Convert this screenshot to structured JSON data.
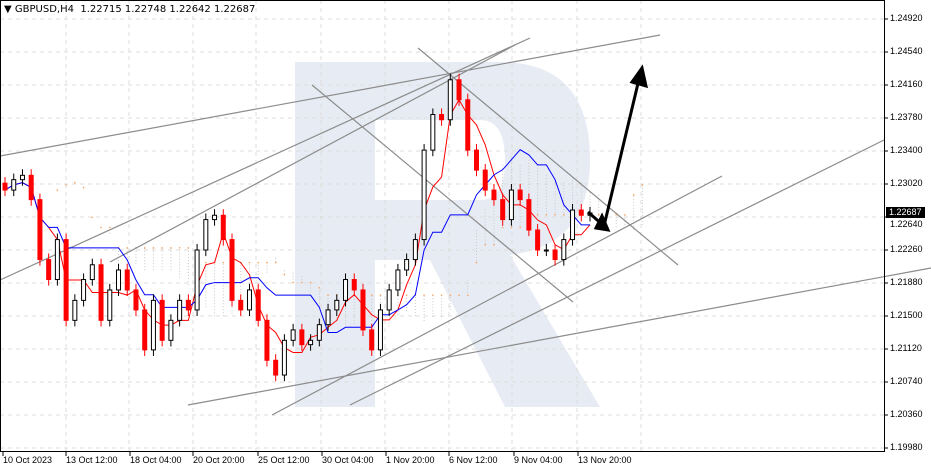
{
  "header": {
    "symbol": "GBPUSD,H4",
    "open": "1.22715",
    "high": "1.22748",
    "low": "1.22642",
    "close": "1.22687"
  },
  "colors": {
    "bull": "#000000",
    "bear": "#ff0000",
    "tenkan": "#ff0000",
    "kijun": "#0000ff",
    "trend": "#8c8c8c",
    "cloud": "#f4a460",
    "watermark": "#dde3ee"
  },
  "chart_data": {
    "type": "candlestick",
    "title": "",
    "ylim": [
      1.1998,
      1.2492
    ],
    "y_ticks": [
      "1.24920",
      "1.24540",
      "1.24160",
      "1.23780",
      "1.23400",
      "1.23020",
      "1.22640",
      "1.22260",
      "1.21880",
      "1.21500",
      "1.21120",
      "1.20740",
      "1.20360",
      "1.19980"
    ],
    "x_ticks": [
      "10 Oct 2023",
      "13 Oct 12:00",
      "18 Oct 04:00",
      "20 Oct 20:00",
      "25 Oct 12:00",
      "30 Oct 04:00",
      "1 Nov 20:00",
      "6 Nov 12:00",
      "9 Nov 04:00",
      "13 Nov 20:00"
    ],
    "last_price": "1.22687",
    "closes": [
      1.2295,
      1.2307,
      1.2312,
      1.2284,
      1.2215,
      1.2192,
      1.2238,
      1.2145,
      1.2168,
      1.2192,
      1.2209,
      1.2145,
      1.218,
      1.2203,
      1.218,
      1.2157,
      1.2111,
      1.2168,
      1.2122,
      1.2145,
      1.2168,
      1.2157,
      1.2226,
      1.2261,
      1.2266,
      1.2238,
      1.2168,
      1.2157,
      1.218,
      1.2145,
      1.2099,
      1.2082,
      1.2122,
      1.2134,
      1.2117,
      1.2122,
      1.214,
      1.2157,
      1.2168,
      1.2192,
      1.218,
      1.2134,
      1.2111,
      1.2157,
      1.218,
      1.2203,
      1.2215,
      1.2238,
      1.2341,
      1.2382,
      1.2376,
      1.2422,
      1.2399,
      1.2341,
      1.2318,
      1.2295,
      1.2284,
      1.2261,
      1.2295,
      1.2284,
      1.2249,
      1.2226,
      1.2226,
      1.2215,
      1.2238,
      1.2272,
      1.2266,
      1.22687
    ],
    "forecast": "up"
  }
}
